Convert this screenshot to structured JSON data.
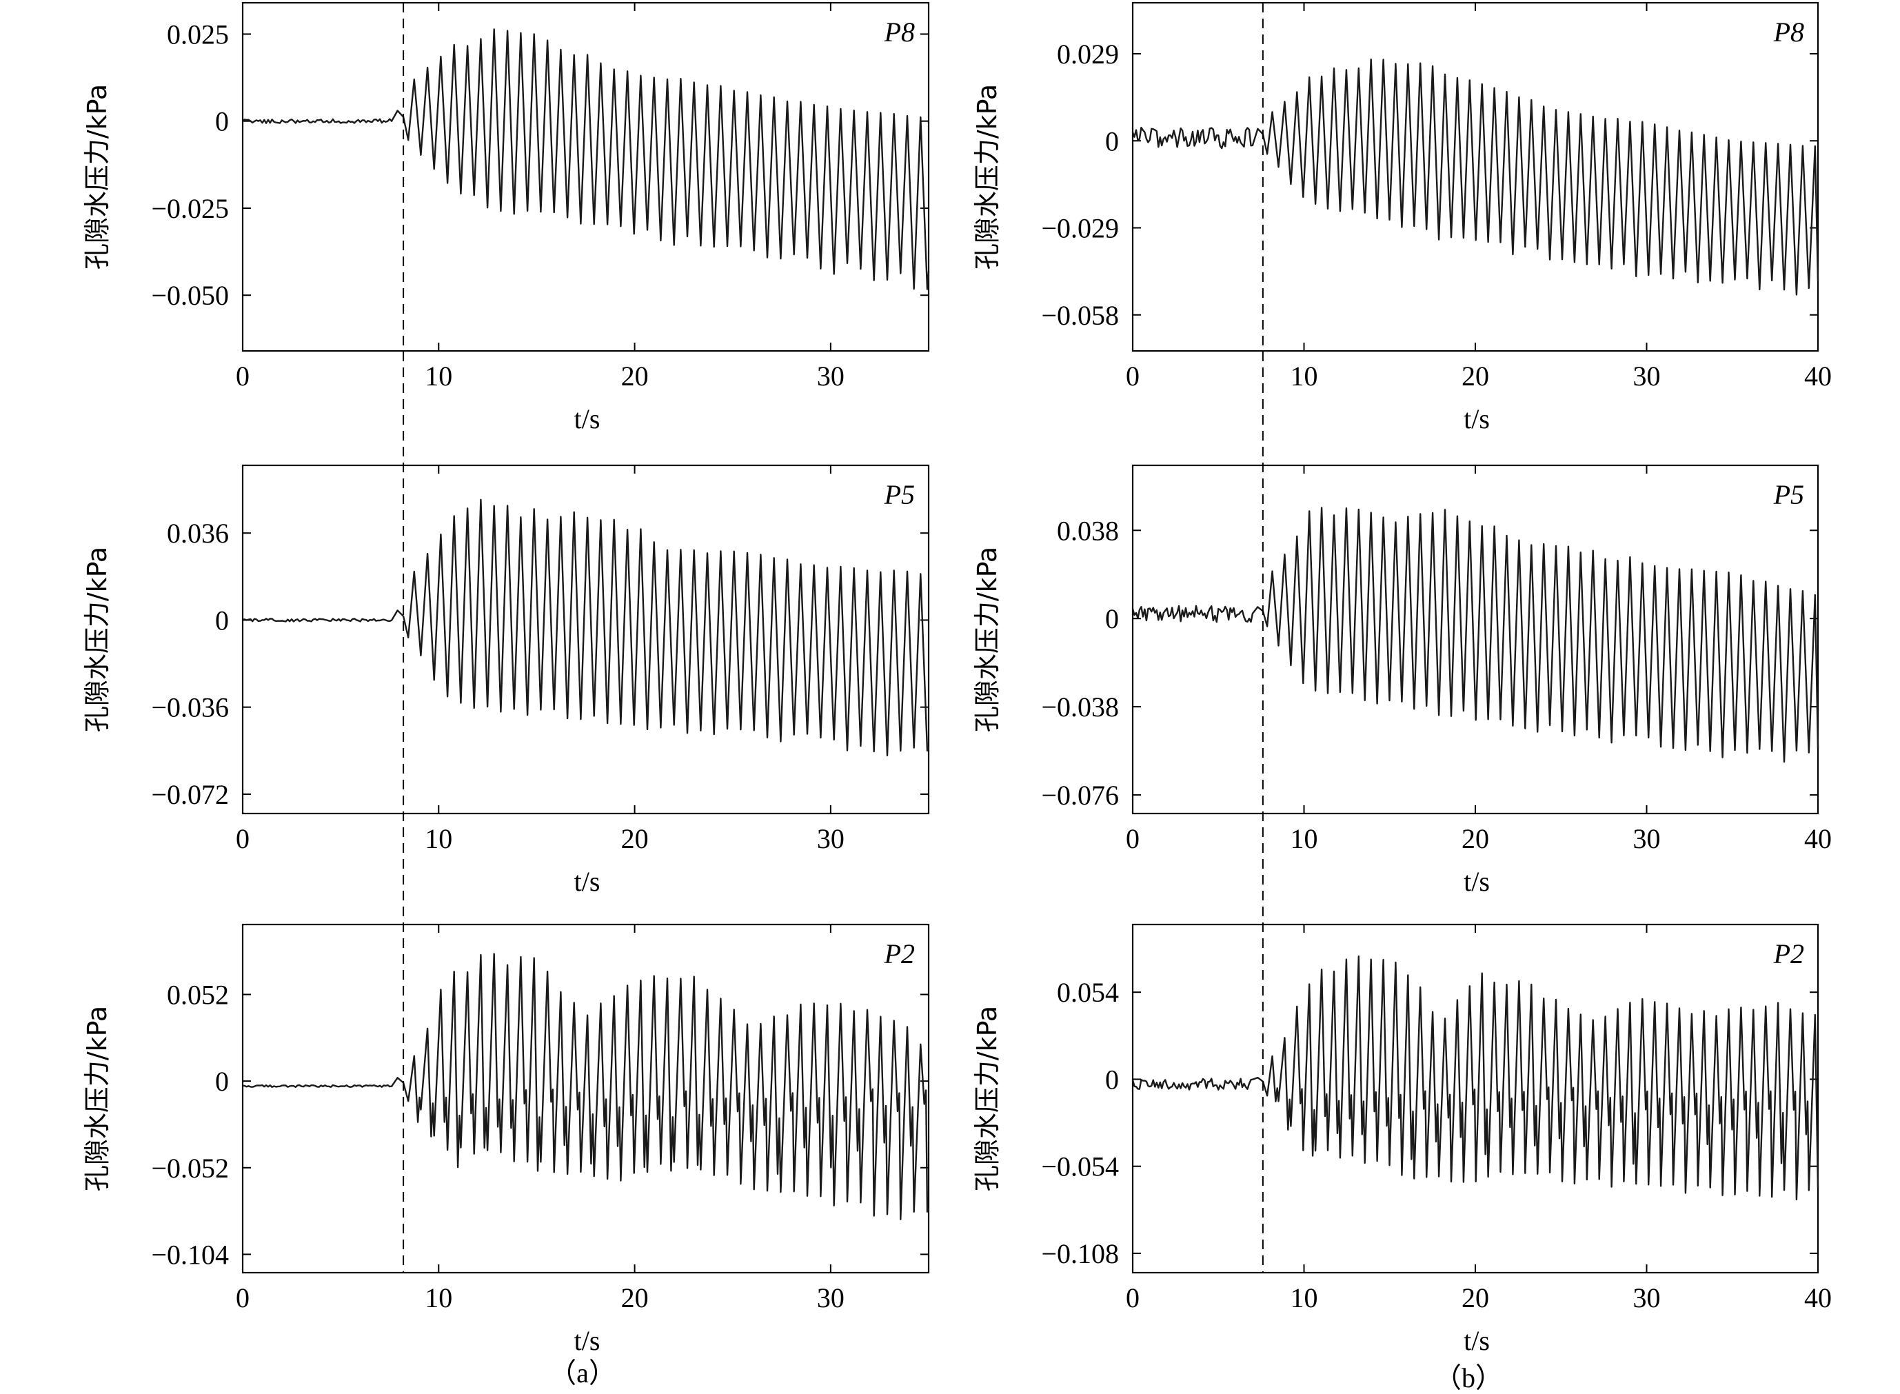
{
  "figure": {
    "captions": [
      "（a）",
      "（b）"
    ]
  },
  "chart_data": [
    {
      "type": "line",
      "id": "a-P8",
      "tag": "P8",
      "xlabel": "t/s",
      "ylabel": "孔隙水压力/kPa",
      "xlim": [
        0,
        35
      ],
      "ylim": [
        -0.066,
        0.034
      ],
      "xticks": [
        0,
        10,
        20,
        30
      ],
      "xtick_labels": [
        "0",
        "10",
        "20",
        "30"
      ],
      "yticks": [
        0.025,
        0,
        -0.025,
        -0.05
      ],
      "ytick_labels": [
        "0.025",
        "0",
        "−0.025",
        "−0.050"
      ],
      "marker_x": 8.2,
      "signal": {
        "t_end": 35,
        "onset": 8.2,
        "pre_level": 0,
        "pre_noise": 0.0006,
        "bump": 0.003,
        "period": 0.68,
        "upper_env": [
          [
            8.8,
            0.012
          ],
          [
            10.5,
            0.021
          ],
          [
            12.5,
            0.026
          ],
          [
            15.5,
            0.025
          ],
          [
            18.5,
            0.016
          ],
          [
            22,
            0.013
          ],
          [
            26,
            0.008
          ],
          [
            30,
            0.004
          ],
          [
            35,
            0.001
          ]
        ],
        "lower_env": [
          [
            8.8,
            -0.008
          ],
          [
            10.5,
            -0.019
          ],
          [
            13,
            -0.026
          ],
          [
            17,
            -0.029
          ],
          [
            21,
            -0.034
          ],
          [
            25,
            -0.038
          ],
          [
            30,
            -0.043
          ],
          [
            35,
            -0.048
          ]
        ],
        "dips": []
      }
    },
    {
      "type": "line",
      "id": "a-P5",
      "tag": "P5",
      "xlabel": "t/s",
      "ylabel": "孔隙水压力/kPa",
      "xlim": [
        0,
        35
      ],
      "ylim": [
        -0.08,
        0.064
      ],
      "xticks": [
        0,
        10,
        20,
        30
      ],
      "xtick_labels": [
        "0",
        "10",
        "20",
        "30"
      ],
      "yticks": [
        0.036,
        0,
        -0.036,
        -0.072
      ],
      "ytick_labels": [
        "0.036",
        "0",
        "−0.036",
        "−0.072"
      ],
      "marker_x": 8.2,
      "signal": {
        "t_end": 35,
        "onset": 8.2,
        "pre_level": 0,
        "pre_noise": 0.0006,
        "bump": 0.004,
        "period": 0.68,
        "upper_env": [
          [
            8.8,
            0.02
          ],
          [
            10.5,
            0.045
          ],
          [
            12,
            0.05
          ],
          [
            16,
            0.045
          ],
          [
            19,
            0.043
          ],
          [
            22,
            0.03
          ],
          [
            26,
            0.03
          ],
          [
            30,
            0.022
          ],
          [
            35,
            0.02
          ]
        ],
        "lower_env": [
          [
            8.8,
            -0.01
          ],
          [
            10,
            -0.03
          ],
          [
            12,
            -0.037
          ],
          [
            16,
            -0.04
          ],
          [
            20,
            -0.045
          ],
          [
            25,
            -0.047
          ],
          [
            30,
            -0.052
          ],
          [
            35,
            -0.058
          ]
        ],
        "dips": []
      }
    },
    {
      "type": "line",
      "id": "a-P2",
      "tag": "P2",
      "xlabel": "t/s",
      "ylabel": "孔隙水压力/kPa",
      "xlim": [
        0,
        35
      ],
      "ylim": [
        -0.115,
        0.094
      ],
      "xticks": [
        0,
        10,
        20,
        30
      ],
      "xtick_labels": [
        "0",
        "10",
        "20",
        "30"
      ],
      "yticks": [
        0.052,
        0,
        -0.052,
        -0.104
      ],
      "ytick_labels": [
        "0.052",
        "0",
        "−0.052",
        "−0.104"
      ],
      "marker_x": 8.2,
      "signal": {
        "t_end": 35,
        "onset": 8.2,
        "pre_level": -0.003,
        "pre_noise": 0.0006,
        "bump": 0.005,
        "period": 0.68,
        "upper_env": [
          [
            8.8,
            0.015
          ],
          [
            10.5,
            0.068
          ],
          [
            13,
            0.078
          ],
          [
            15,
            0.075
          ],
          [
            17.5,
            0.04
          ],
          [
            20,
            0.065
          ],
          [
            23,
            0.065
          ],
          [
            26,
            0.035
          ],
          [
            29,
            0.05
          ],
          [
            33,
            0.042
          ],
          [
            35,
            0.02
          ]
        ],
        "lower_env": [
          [
            8.8,
            -0.01
          ],
          [
            10,
            -0.04
          ],
          [
            13,
            -0.045
          ],
          [
            16,
            -0.055
          ],
          [
            19,
            -0.06
          ],
          [
            22,
            -0.05
          ],
          [
            26,
            -0.065
          ],
          [
            30,
            -0.075
          ],
          [
            35,
            -0.085
          ]
        ],
        "dips": [
          -0.02,
          -0.04
        ]
      }
    },
    {
      "type": "line",
      "id": "b-P8",
      "tag": "P8",
      "xlabel": "t/s",
      "ylabel": "孔隙水压力/kPa",
      "xlim": [
        0,
        40
      ],
      "ylim": [
        -0.07,
        0.046
      ],
      "xticks": [
        0,
        10,
        20,
        30,
        40
      ],
      "xtick_labels": [
        "0",
        "10",
        "20",
        "30",
        "40"
      ],
      "yticks": [
        0.029,
        0,
        -0.029,
        -0.058
      ],
      "ytick_labels": [
        "0.029",
        "0",
        "−0.029",
        "−0.058"
      ],
      "marker_x": 7.6,
      "signal": {
        "t_end": 40,
        "onset": 7.6,
        "pre_level": 0.001,
        "pre_noise": 0.0035,
        "bump": 0.003,
        "period": 0.72,
        "upper_env": [
          [
            8.3,
            0.01
          ],
          [
            10.5,
            0.022
          ],
          [
            12.5,
            0.026
          ],
          [
            15,
            0.028
          ],
          [
            17,
            0.026
          ],
          [
            20,
            0.02
          ],
          [
            25,
            0.01
          ],
          [
            30,
            0.006
          ],
          [
            35,
            0
          ],
          [
            40,
            -0.002
          ]
        ],
        "lower_env": [
          [
            8.3,
            -0.008
          ],
          [
            10,
            -0.02
          ],
          [
            13,
            -0.025
          ],
          [
            16,
            -0.03
          ],
          [
            20,
            -0.035
          ],
          [
            25,
            -0.04
          ],
          [
            30,
            -0.045
          ],
          [
            35,
            -0.048
          ],
          [
            40,
            -0.052
          ]
        ],
        "dips": []
      }
    },
    {
      "type": "line",
      "id": "b-P5",
      "tag": "P5",
      "xlabel": "t/s",
      "ylabel": "孔隙水压力/kPa",
      "xlim": [
        0,
        40
      ],
      "ylim": [
        -0.084,
        0.066
      ],
      "xticks": [
        0,
        10,
        20,
        30,
        40
      ],
      "xtick_labels": [
        "0",
        "10",
        "20",
        "30",
        "40"
      ],
      "yticks": [
        0.038,
        0,
        -0.038,
        -0.076
      ],
      "ytick_labels": [
        "0.038",
        "0",
        "−0.038",
        "−0.076"
      ],
      "marker_x": 7.6,
      "signal": {
        "t_end": 40,
        "onset": 7.6,
        "pre_level": 0.002,
        "pre_noise": 0.0035,
        "bump": 0.003,
        "period": 0.72,
        "upper_env": [
          [
            8.3,
            0.02
          ],
          [
            10.5,
            0.048
          ],
          [
            13,
            0.05
          ],
          [
            16,
            0.045
          ],
          [
            19,
            0.048
          ],
          [
            22,
            0.036
          ],
          [
            26,
            0.03
          ],
          [
            30,
            0.025
          ],
          [
            35,
            0.02
          ],
          [
            40,
            0.01
          ]
        ],
        "lower_env": [
          [
            8.3,
            -0.01
          ],
          [
            10,
            -0.03
          ],
          [
            13,
            -0.035
          ],
          [
            17,
            -0.04
          ],
          [
            21,
            -0.045
          ],
          [
            25,
            -0.05
          ],
          [
            30,
            -0.055
          ],
          [
            35,
            -0.06
          ],
          [
            40,
            -0.062
          ]
        ],
        "dips": []
      }
    },
    {
      "type": "line",
      "id": "b-P2",
      "tag": "P2",
      "xlabel": "t/s",
      "ylabel": "孔隙水压力/kPa",
      "xlim": [
        0,
        40
      ],
      "ylim": [
        -0.12,
        0.096
      ],
      "xticks": [
        0,
        10,
        20,
        30,
        40
      ],
      "xtick_labels": [
        "0",
        "10",
        "20",
        "30",
        "40"
      ],
      "yticks": [
        0.054,
        0,
        -0.054,
        -0.108
      ],
      "ytick_labels": [
        "0.054",
        "0",
        "−0.054",
        "−0.108"
      ],
      "marker_x": 7.6,
      "signal": {
        "t_end": 40,
        "onset": 7.6,
        "pre_level": -0.003,
        "pre_noise": 0.0035,
        "bump": 0.004,
        "period": 0.72,
        "upper_env": [
          [
            8.3,
            0.015
          ],
          [
            10.5,
            0.065
          ],
          [
            13,
            0.078
          ],
          [
            16,
            0.07
          ],
          [
            18,
            0.035
          ],
          [
            20,
            0.07
          ],
          [
            23,
            0.06
          ],
          [
            27,
            0.04
          ],
          [
            30,
            0.05
          ],
          [
            34,
            0.04
          ],
          [
            37,
            0.05
          ],
          [
            40,
            0.04
          ]
        ],
        "lower_env": [
          [
            8.3,
            -0.01
          ],
          [
            10,
            -0.045
          ],
          [
            13,
            -0.05
          ],
          [
            16,
            -0.06
          ],
          [
            19,
            -0.065
          ],
          [
            23,
            -0.06
          ],
          [
            27,
            -0.065
          ],
          [
            31,
            -0.07
          ],
          [
            35,
            -0.072
          ],
          [
            40,
            -0.075
          ]
        ],
        "dips": [
          -0.02,
          -0.04
        ]
      }
    }
  ]
}
